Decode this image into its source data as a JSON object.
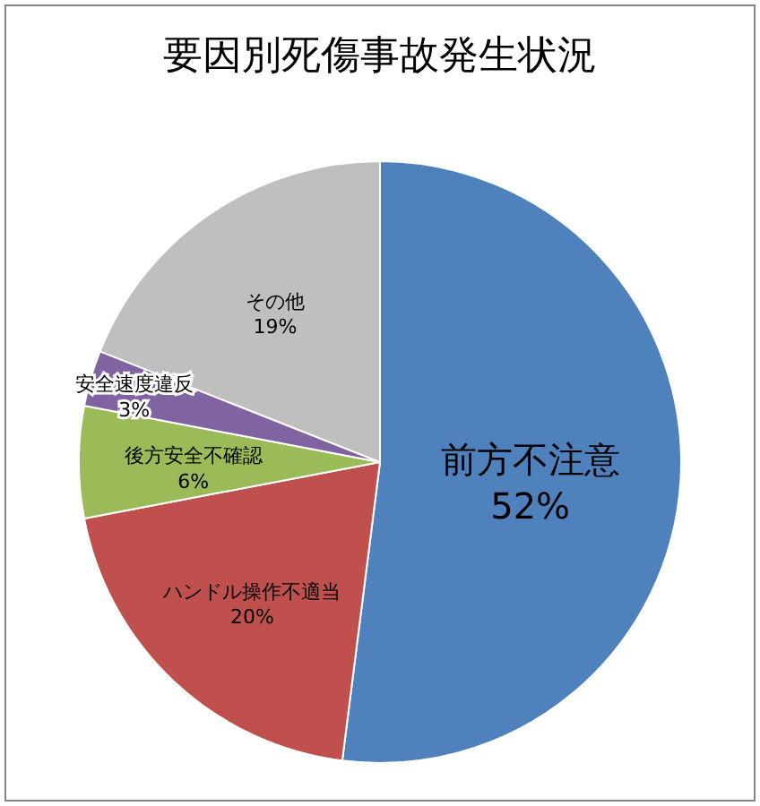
{
  "chart_data": {
    "type": "pie",
    "title": "要因別死傷事故発生状況",
    "categories": [
      "前方不注意",
      "ハンドル操作不適当",
      "後方安全不確認",
      "安全速度違反",
      "その他"
    ],
    "values": [
      52,
      20,
      6,
      3,
      19
    ],
    "colors": [
      "#4f81bd",
      "#c0504d",
      "#9bbb59",
      "#8064a2",
      "#bfbfbf"
    ],
    "value_labels": [
      "52%",
      "20%",
      "6%",
      "3%",
      "19%"
    ]
  }
}
